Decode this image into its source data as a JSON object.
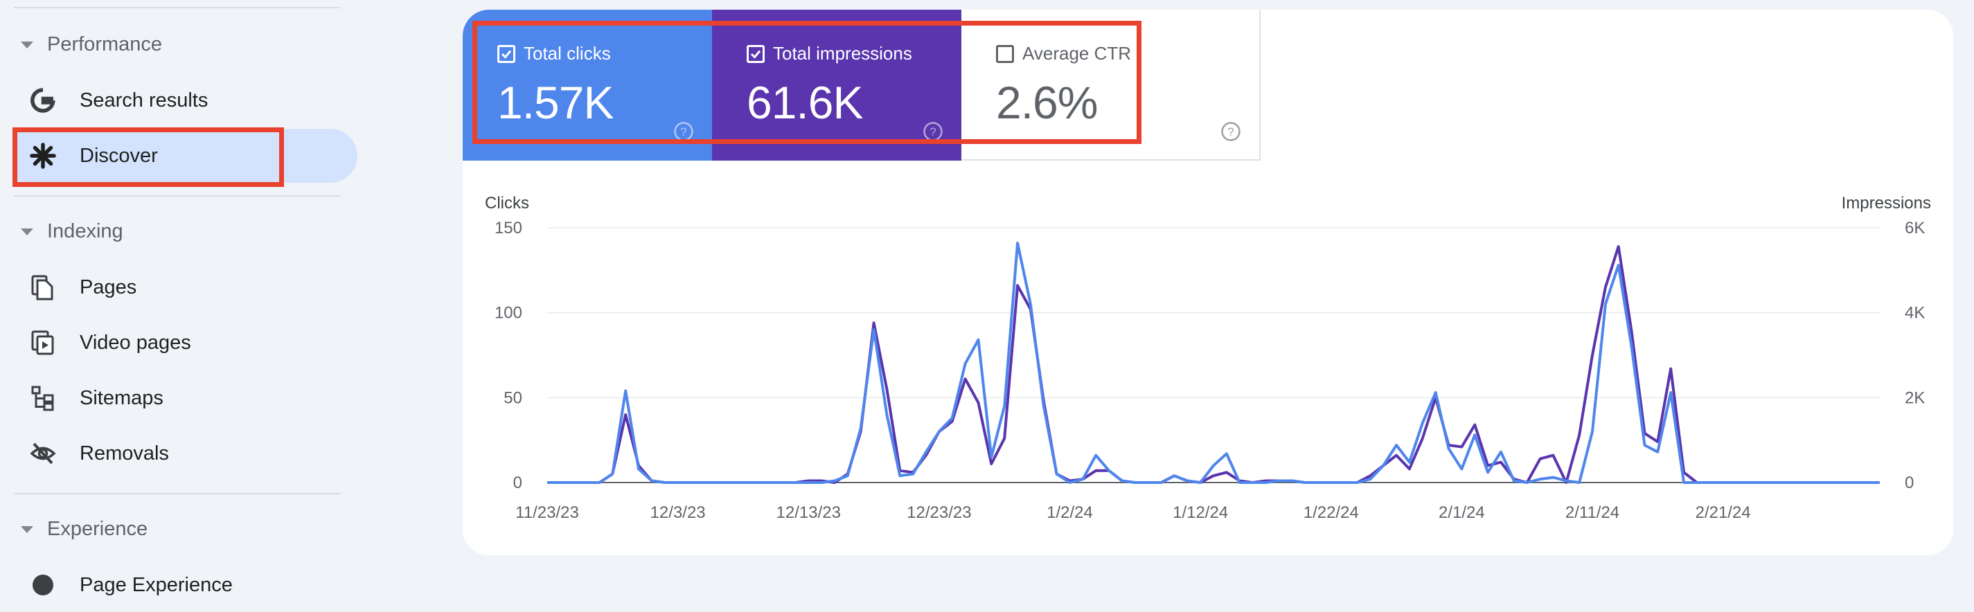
{
  "sidebar": {
    "sections": [
      {
        "label": "Performance"
      },
      {
        "label": "Indexing"
      },
      {
        "label": "Experience"
      }
    ],
    "performance_items": [
      {
        "label": "Search results",
        "icon": "google-g-icon"
      },
      {
        "label": "Discover",
        "icon": "asterisk-icon",
        "active": true
      }
    ],
    "indexing_items": [
      {
        "label": "Pages",
        "icon": "pages-icon"
      },
      {
        "label": "Video pages",
        "icon": "video-pages-icon"
      },
      {
        "label": "Sitemaps",
        "icon": "sitemap-icon"
      },
      {
        "label": "Removals",
        "icon": "eye-off-icon"
      }
    ],
    "experience_items": [
      {
        "label": "Page Experience",
        "icon": "info-icon"
      }
    ]
  },
  "metrics": [
    {
      "label": "Total clicks",
      "value": "1.57K",
      "checked": true,
      "color": "#4f86ec"
    },
    {
      "label": "Total impressions",
      "value": "61.6K",
      "checked": true,
      "color": "#5a35ad"
    },
    {
      "label": "Average CTR",
      "value": "2.6%",
      "checked": false,
      "color": "#ffffff"
    }
  ],
  "highlight_color": "#e8412d",
  "chart_data": {
    "type": "line",
    "left_axis_title": "Clicks",
    "right_axis_title": "Impressions",
    "left_ticks": [
      "150",
      "100",
      "50",
      "0"
    ],
    "right_ticks": [
      "6K",
      "4K",
      "2K",
      "0"
    ],
    "ylim_left": [
      0,
      150
    ],
    "ylim_right": [
      0,
      6000
    ],
    "x_tick_labels": [
      "11/23/23",
      "12/3/23",
      "12/13/23",
      "12/23/23",
      "1/2/24",
      "1/12/24",
      "1/22/24",
      "2/1/24",
      "2/11/24",
      "2/21/24"
    ],
    "x_start": "11/23/23",
    "grid": true,
    "series": [
      {
        "name": "Clicks",
        "axis": "left",
        "color": "#4f86ec",
        "values": [
          0,
          0,
          0,
          0,
          0,
          5,
          54,
          8,
          1,
          0,
          0,
          0,
          0,
          0,
          0,
          0,
          0,
          0,
          0,
          0,
          0,
          0,
          1,
          4,
          32,
          90,
          40,
          4,
          5,
          18,
          30,
          38,
          70,
          84,
          15,
          45,
          141,
          105,
          45,
          5,
          0,
          2,
          16,
          7,
          1,
          0,
          0,
          0,
          4,
          1,
          0,
          10,
          17,
          0,
          0,
          0,
          1,
          1,
          0,
          0,
          0,
          0,
          0,
          2,
          10,
          22,
          12,
          35,
          53,
          20,
          8,
          28,
          6,
          18,
          1,
          0,
          2,
          3,
          1,
          0,
          30,
          105,
          128,
          80,
          22,
          18,
          53,
          0,
          0,
          0,
          0,
          0,
          0,
          0,
          0,
          0,
          0,
          0,
          0,
          0,
          0,
          0,
          0
        ]
      },
      {
        "name": "Impressions",
        "axis": "right",
        "color": "#5a35ad",
        "values": [
          0,
          0,
          0,
          0,
          0,
          200,
          1600,
          400,
          40,
          0,
          0,
          0,
          0,
          0,
          0,
          0,
          0,
          0,
          0,
          0,
          40,
          40,
          0,
          200,
          1200,
          3760,
          2200,
          280,
          240,
          640,
          1200,
          1440,
          2440,
          1880,
          440,
          1040,
          4640,
          4080,
          1920,
          200,
          40,
          80,
          280,
          280,
          40,
          0,
          0,
          0,
          160,
          40,
          0,
          160,
          240,
          40,
          0,
          40,
          40,
          40,
          0,
          0,
          0,
          0,
          0,
          160,
          400,
          640,
          320,
          1040,
          2000,
          880,
          840,
          1360,
          400,
          480,
          80,
          0,
          560,
          640,
          0,
          1120,
          3000,
          4600,
          5560,
          3560,
          1160,
          960,
          2680,
          240,
          0,
          0,
          0,
          0,
          0,
          0,
          0,
          0,
          0,
          0,
          0,
          0,
          0,
          0,
          0
        ]
      }
    ]
  }
}
